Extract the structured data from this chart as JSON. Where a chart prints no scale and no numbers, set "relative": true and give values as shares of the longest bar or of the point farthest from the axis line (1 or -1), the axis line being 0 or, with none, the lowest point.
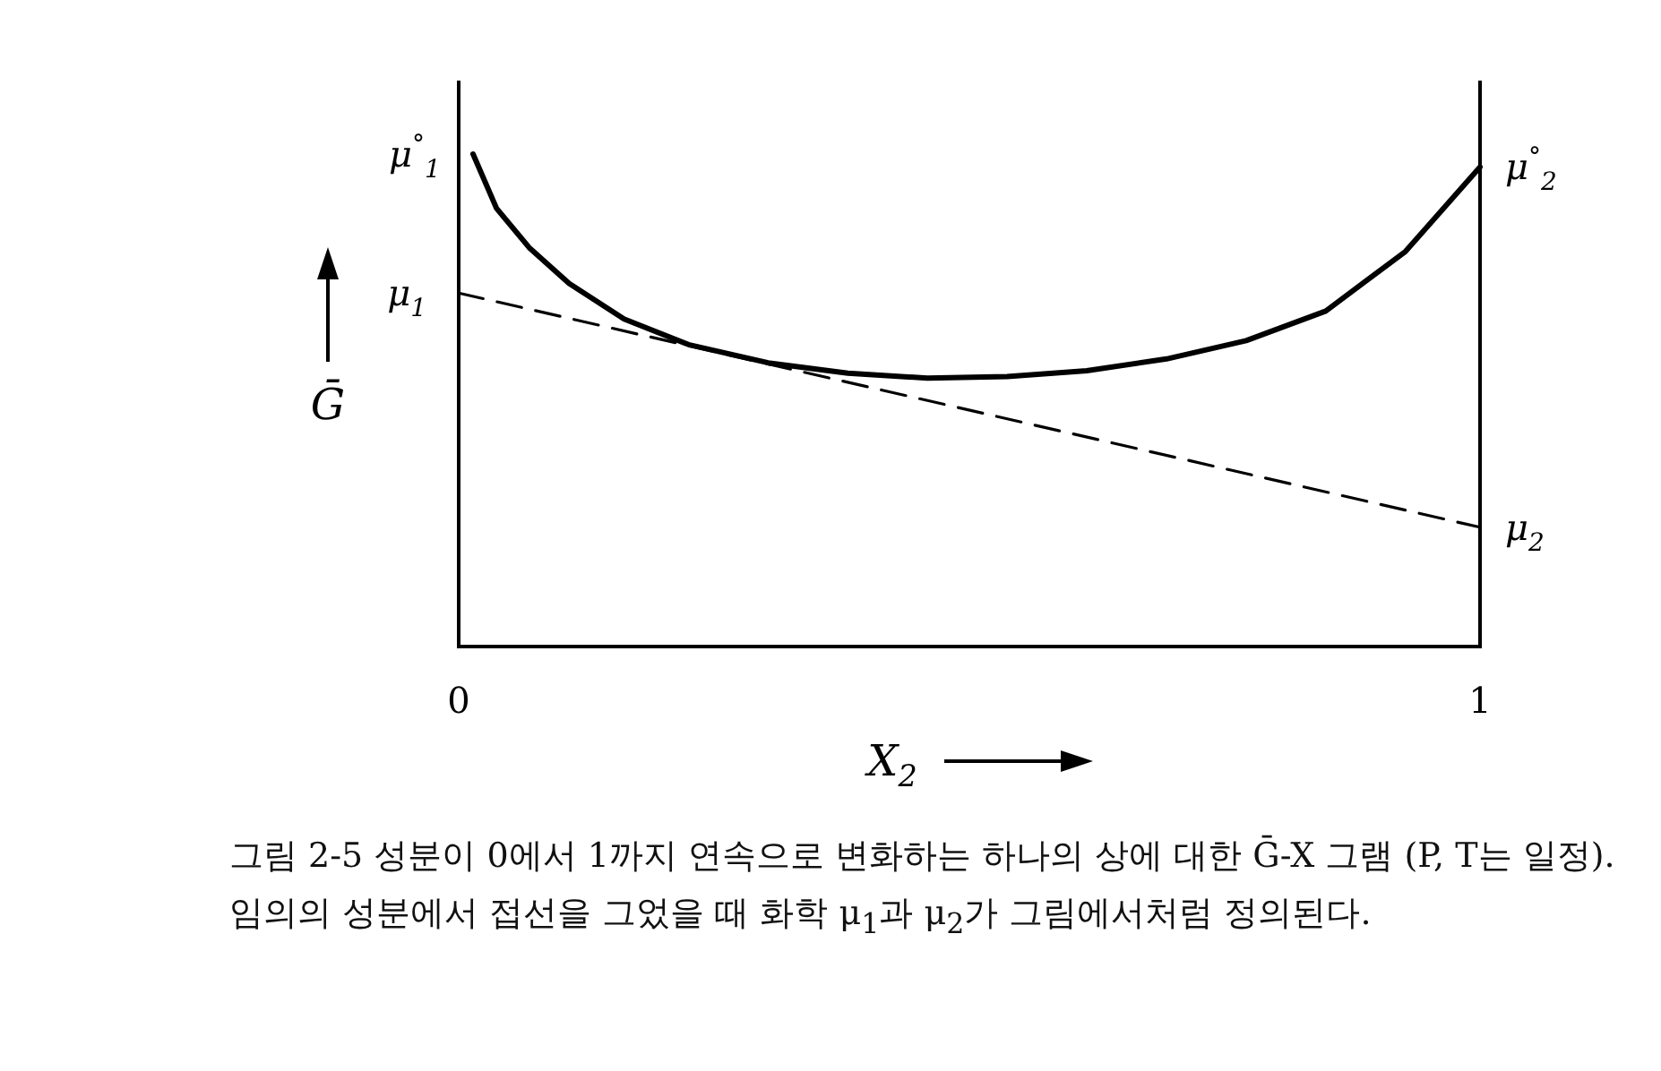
{
  "chart_data": {
    "type": "line",
    "relative": true,
    "x": [
      0.014,
      0.037,
      0.069,
      0.108,
      0.162,
      0.225,
      0.303,
      0.381,
      0.459,
      0.537,
      0.615,
      0.693,
      0.771,
      0.849,
      0.927,
      1.0
    ],
    "xlim": [
      0,
      1
    ],
    "xticks": [
      0,
      1
    ],
    "tick_labels": "x",
    "xlabel": "X$_{2}$",
    "ylabel": "Ḡ",
    "series": [
      {
        "color": "#000000",
        "line_style": "solid",
        "values": [
          1.0,
          0.89,
          0.81,
          0.737,
          0.665,
          0.613,
          0.576,
          0.555,
          0.545,
          0.548,
          0.56,
          0.584,
          0.621,
          0.681,
          0.802,
          0.974
        ]
      },
      {
        "type": "line",
        "color": "#000000",
        "line_style": "dashed",
        "x": [
          0,
          1
        ],
        "values": [
          0.718,
          0.242
        ]
      }
    ],
    "annotations": [
      {
        "text": "μ$^{°}$$_{1}$",
        "x": 0.014,
        "y": 1.0
      },
      {
        "text": "μ$^{°}$$_{2}$",
        "x": 1,
        "y": 0.974
      },
      {
        "text": "μ$_{1}$",
        "x": 0,
        "y": 0.718
      },
      {
        "text": "μ$_{2}$",
        "x": 1,
        "y": 0.242
      },
      "그림 2-5 성분이 0에서 1까지 연속으로 변화하는 하나의 상에 대한 Ḡ-X 그램 (P, T는 일정). 임의의 성분에서 접선을 그었을 때 화학 μ$_{1}$과 μ$_{2}$가 그림에서처럼 정의된다."
    ]
  }
}
